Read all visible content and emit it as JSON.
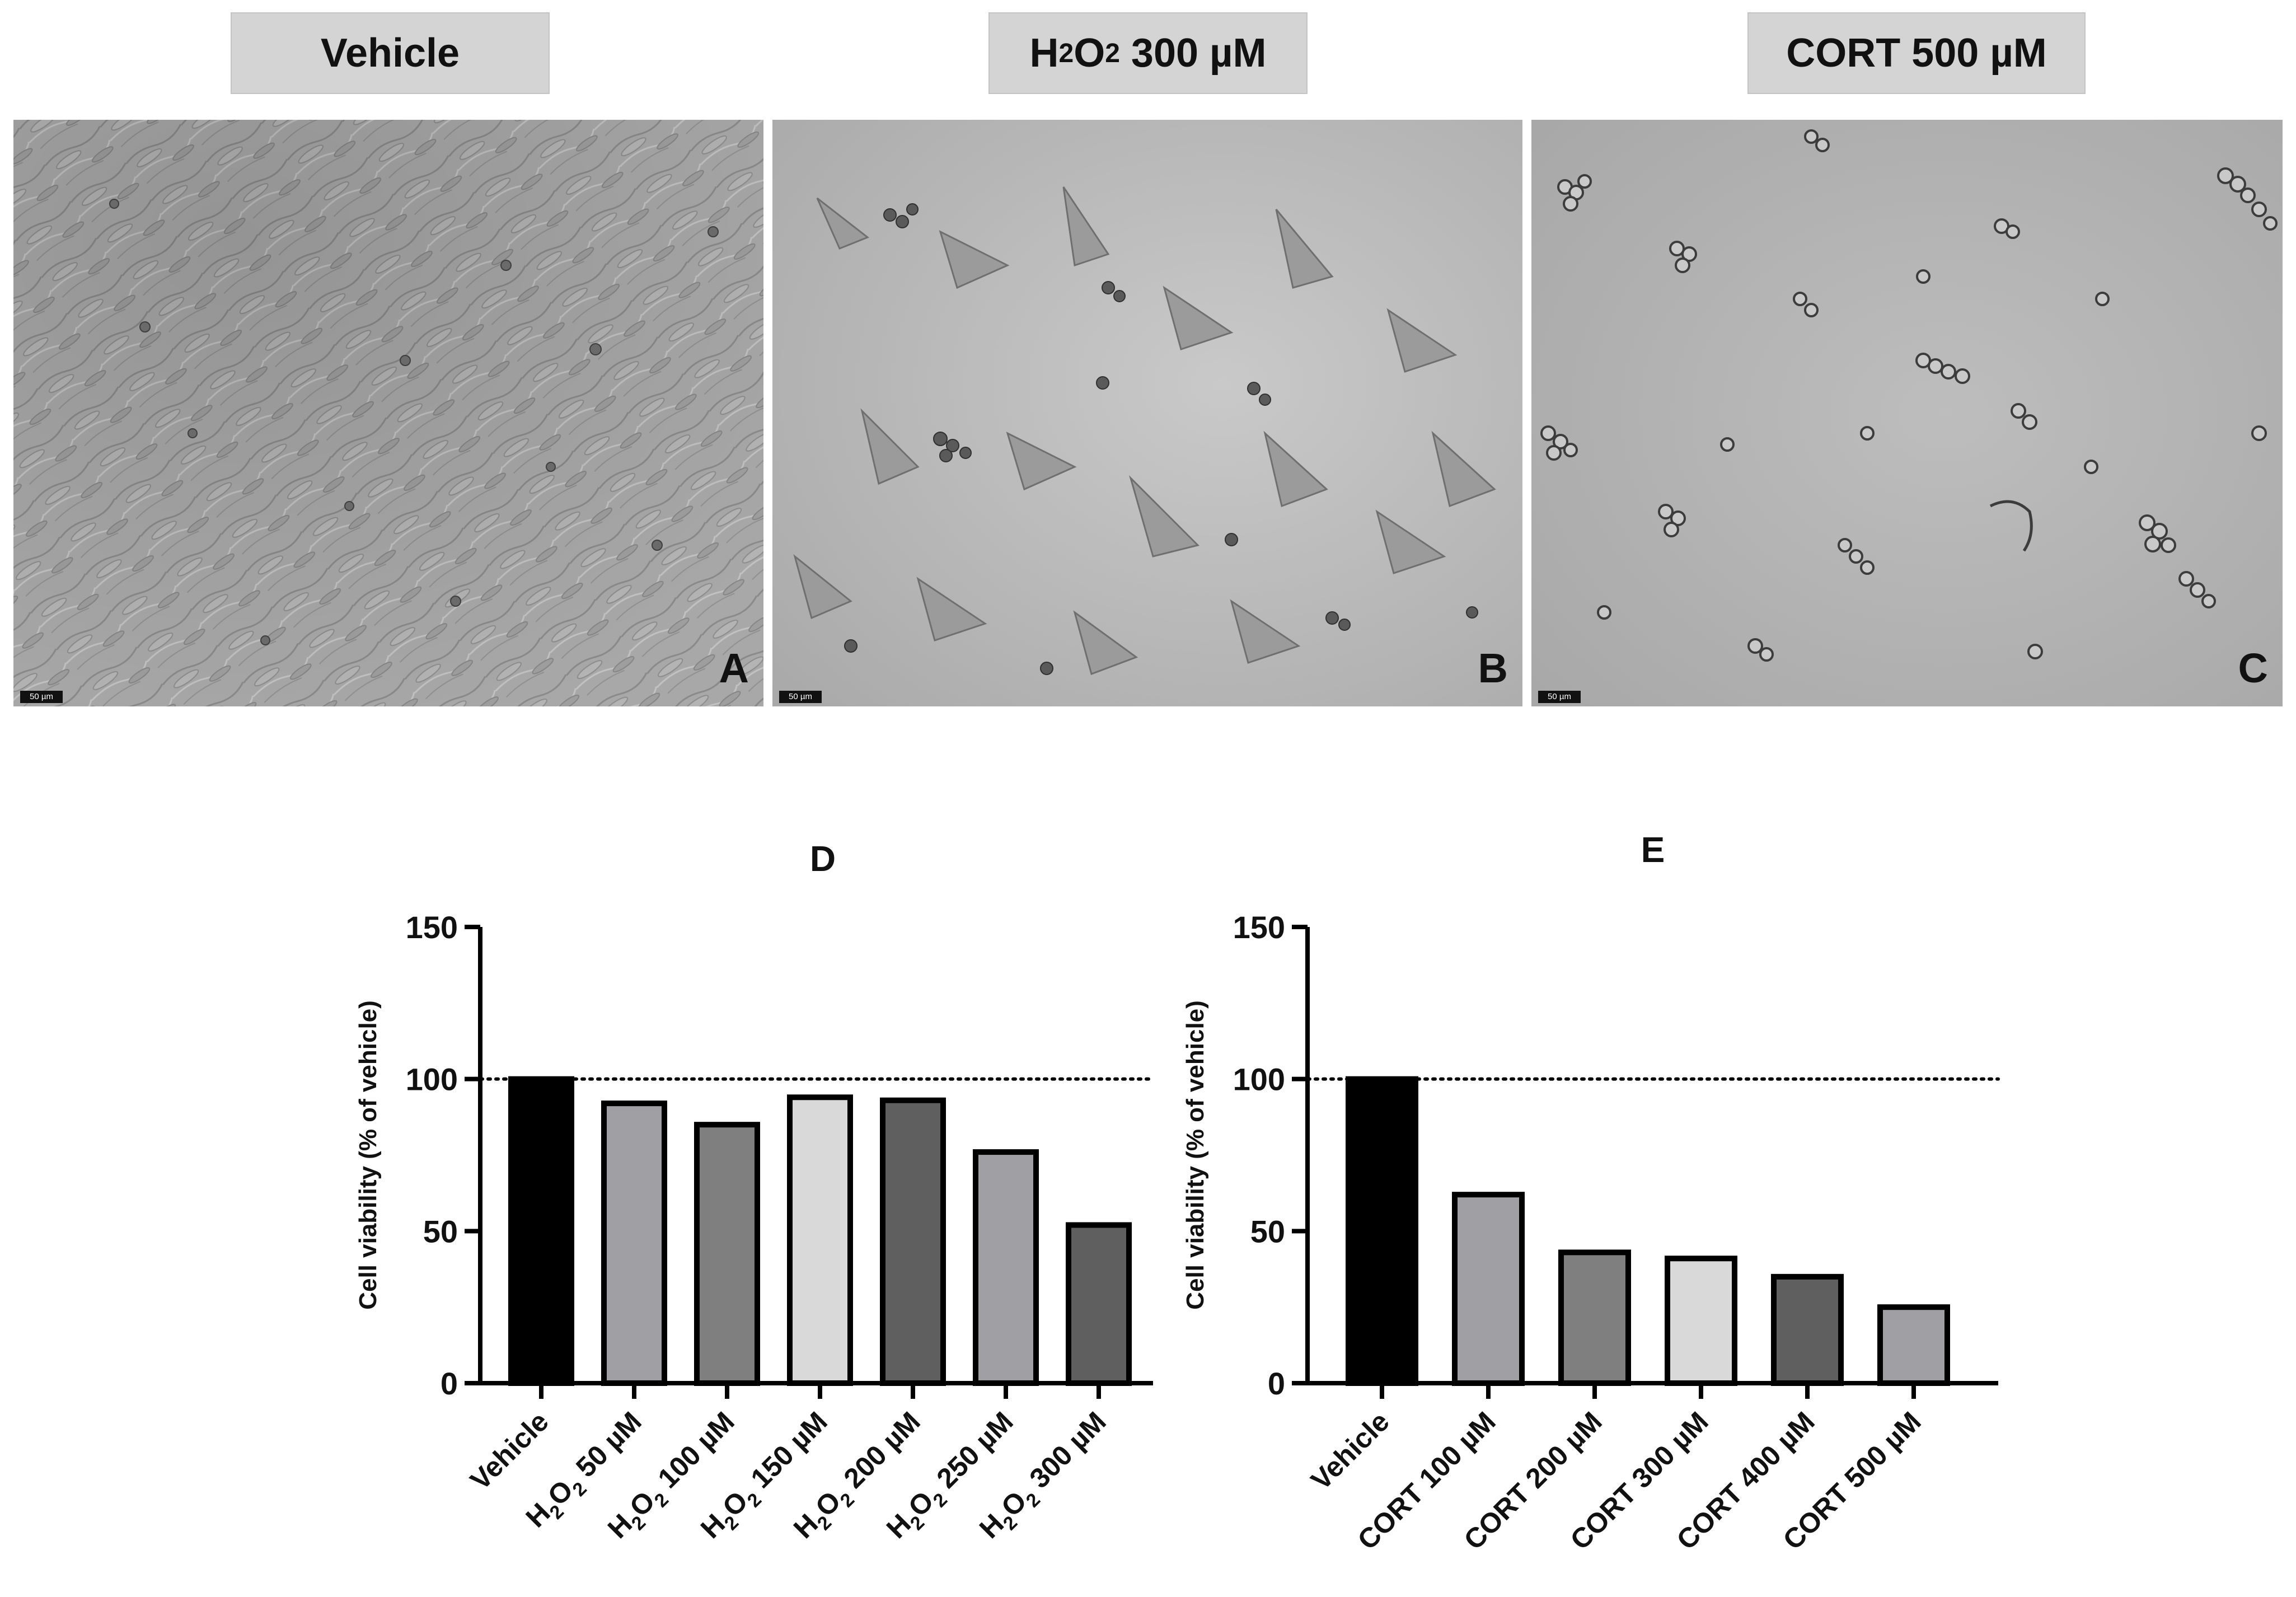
{
  "micrographs": [
    {
      "label_main": "Vehicle",
      "label_sub": "",
      "label_rest": "",
      "letter": "A",
      "scale": "50 µm"
    },
    {
      "label_main": "H",
      "label_sub": "2",
      "label_rest": "O",
      "label_sub2": "2",
      "label_tail": " 300 µM",
      "letter": "B",
      "scale": "50 µm"
    },
    {
      "label_main": "CORT 500 µM",
      "label_sub": "",
      "label_rest": "",
      "letter": "C",
      "scale": "50 µm"
    }
  ],
  "colors": {
    "black": "#000000",
    "light_gray": "#a0a0a4",
    "mid_gray": "#7f7f7f",
    "pale_gray": "#d9d9d9",
    "dark_gray": "#5f5f5f",
    "ref_line": "#000000"
  },
  "chart_data": [
    {
      "type": "bar",
      "panel": "D",
      "title": "D",
      "ylabel": "Cell viability (% of vehicle)",
      "ylim": [
        0,
        150
      ],
      "yticks": [
        0,
        50,
        100,
        150
      ],
      "reference_line": 100,
      "categories": [
        "Vehicle",
        "H2O2 50 µM",
        "H2O2 100 µM",
        "H2O2 150 µM",
        "H2O2 200 µM",
        "H2O2 250 µM",
        "H2O2 300 µM"
      ],
      "category_parts": [
        [
          "Vehicle",
          "",
          "",
          "",
          ""
        ],
        [
          "H",
          "2",
          "O",
          "2",
          " 50 µM"
        ],
        [
          "H",
          "2",
          "O",
          "2",
          " 100 µM"
        ],
        [
          "H",
          "2",
          "O",
          "2",
          " 150 µM"
        ],
        [
          "H",
          "2",
          "O",
          "2",
          " 200 µM"
        ],
        [
          "H",
          "2",
          "O",
          "2",
          " 250 µM"
        ],
        [
          "H",
          "2",
          "O",
          "2",
          " 300 µM"
        ]
      ],
      "values": [
        100,
        92,
        85,
        94,
        93,
        76,
        52
      ],
      "bar_colors": [
        "#000000",
        "#a0a0a4",
        "#7f7f7f",
        "#d9d9d9",
        "#5f5f5f",
        "#a0a0a4",
        "#5f5f5f"
      ]
    },
    {
      "type": "bar",
      "panel": "E",
      "title": "E",
      "ylabel": "Cell viability (% of vehicle)",
      "ylim": [
        0,
        150
      ],
      "yticks": [
        0,
        50,
        100,
        150
      ],
      "reference_line": 100,
      "categories": [
        "Vehicle",
        "CORT 100 µM",
        "CORT 200 µM",
        "CORT 300 µM",
        "CORT 400 µM",
        "CORT 500 µM"
      ],
      "category_parts": [
        [
          "Vehicle",
          "",
          "",
          "",
          ""
        ],
        [
          "CORT 100 µM",
          "",
          "",
          "",
          ""
        ],
        [
          "CORT 200 µM",
          "",
          "",
          "",
          ""
        ],
        [
          "CORT 300 µM",
          "",
          "",
          "",
          ""
        ],
        [
          "CORT 400 µM",
          "",
          "",
          "",
          ""
        ],
        [
          "CORT 500 µM",
          "",
          "",
          "",
          ""
        ]
      ],
      "values": [
        100,
        62,
        43,
        41,
        35,
        25
      ],
      "bar_colors": [
        "#000000",
        "#a0a0a4",
        "#7f7f7f",
        "#d9d9d9",
        "#5f5f5f",
        "#a0a0a4"
      ]
    }
  ]
}
